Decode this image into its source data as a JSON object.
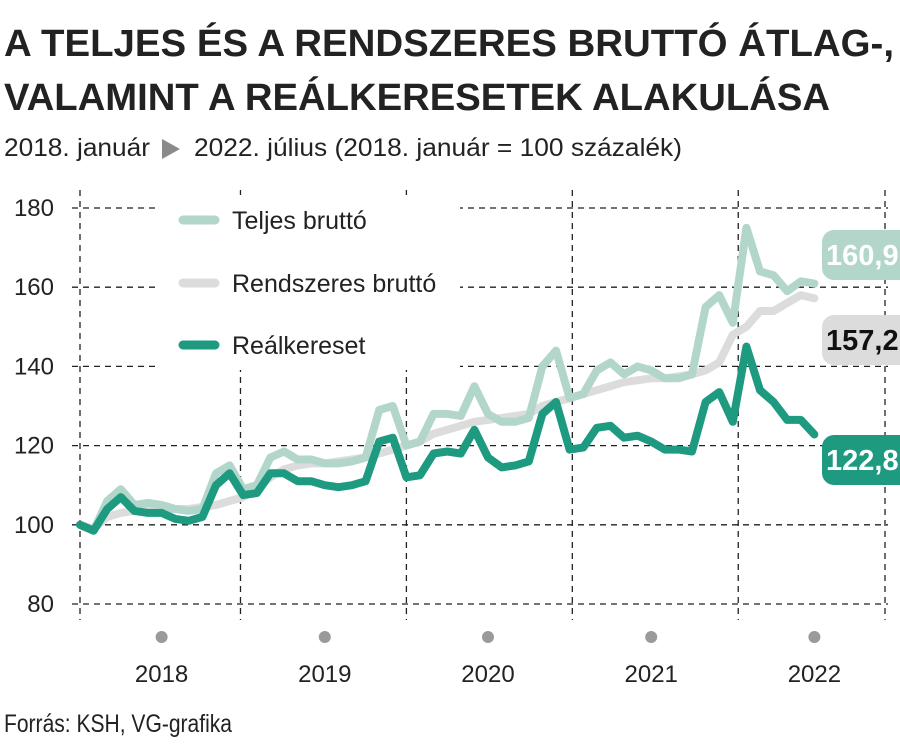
{
  "title_line1": "A TELJES ÉS A RENDSZERES BRUTTÓ ÁTLAG-,",
  "title_line2": "VALAMINT A REÁLKERESETEK ALAKULÁSA",
  "subtitle_start": "2018. január",
  "subtitle_arrow_icon": "triangle-right-icon",
  "subtitle_end": "2022. július (2018. január = 100 százalék)",
  "source": "Forrás: KSH, VG-grafika",
  "chart_data": {
    "type": "line",
    "x_start": "2018-01",
    "x_end": "2022-07",
    "x_frequency": "monthly",
    "xtick_labels": [
      "2018",
      "2019",
      "2020",
      "2021",
      "2022"
    ],
    "ylim": [
      80,
      180
    ],
    "yticks": [
      80,
      100,
      120,
      140,
      160,
      180
    ],
    "grid": true,
    "legend_placement": "top-left",
    "series": [
      {
        "name": "Teljes bruttó",
        "color": "#b3d6cb",
        "end_label": "160,9",
        "values": [
          100,
          98.5,
          106,
          109,
          105,
          105.5,
          105,
          104,
          103.5,
          104,
          113,
          115,
          109,
          110,
          117,
          118.5,
          116.5,
          116.5,
          115.5,
          115.5,
          116,
          117,
          129,
          130,
          120,
          121,
          128,
          128,
          127.5,
          135,
          128,
          126,
          126,
          127,
          140,
          144,
          132,
          133,
          139,
          141,
          138,
          140,
          139,
          137,
          137,
          138,
          155,
          158,
          151,
          175,
          164,
          163,
          159,
          161.5,
          160.9
        ]
      },
      {
        "name": "Rendszeres bruttó",
        "color": "#dcdcdc",
        "end_label": "157,2",
        "values": [
          100,
          99,
          102,
          103,
          103.5,
          104,
          104,
          104,
          104,
          104.5,
          105,
          106,
          107,
          109,
          112,
          114,
          115,
          115.5,
          115.5,
          116,
          116.5,
          117,
          118,
          119,
          120,
          121,
          123,
          124,
          125,
          126,
          126.5,
          127,
          127.5,
          128,
          130,
          131,
          132,
          133,
          134,
          135,
          136,
          136.5,
          137,
          137,
          137.5,
          138,
          139,
          141,
          148,
          150,
          154,
          154,
          156,
          158,
          157.2
        ]
      },
      {
        "name": "Reálkereset",
        "color": "#1e9a80",
        "end_label": "122,8",
        "values": [
          100,
          98.5,
          104,
          107,
          103.5,
          103,
          103,
          101.5,
          101,
          102,
          110,
          113,
          107.5,
          108,
          113,
          113,
          111,
          111,
          110,
          109.5,
          110,
          111,
          121,
          122,
          112,
          112.5,
          118,
          118.5,
          118,
          124,
          117,
          114.5,
          115,
          116,
          128,
          131,
          119,
          119.5,
          124.5,
          125,
          122,
          122.5,
          121,
          119,
          119,
          118.5,
          131,
          133.5,
          126,
          145,
          134,
          131,
          126.5,
          126.5,
          122.8
        ]
      }
    ]
  }
}
